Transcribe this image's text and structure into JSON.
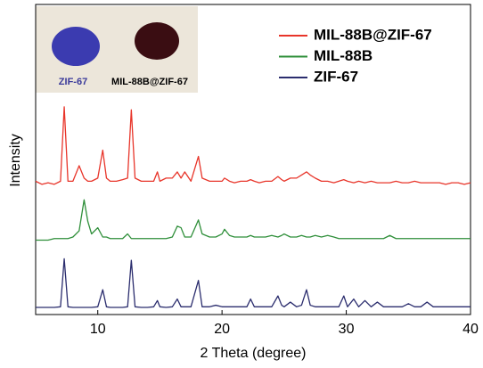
{
  "chart_data": {
    "type": "line",
    "xlabel": "2 Theta (degree)",
    "ylabel": "Intensity",
    "xlim": [
      5,
      40
    ],
    "xticks": [
      10,
      20,
      30,
      40
    ],
    "ylim": [
      0,
      100
    ],
    "legend": "upper right",
    "inset_labels": [
      "ZIF-67",
      "MIL-88B@ZIF-67"
    ],
    "x": [
      5,
      5.5,
      6,
      6.5,
      7,
      7.3,
      7.6,
      8,
      8.5,
      8.9,
      9.2,
      9.5,
      10,
      10.4,
      10.7,
      11,
      11.5,
      12,
      12.4,
      12.7,
      13,
      13.5,
      14,
      14.5,
      14.8,
      15,
      15.5,
      16,
      16.4,
      16.7,
      17,
      17.5,
      18.1,
      18.4,
      19,
      19.5,
      20,
      20.2,
      20.6,
      21,
      21.5,
      22,
      22.3,
      22.6,
      23,
      23.5,
      24,
      24.5,
      24.8,
      25,
      25.5,
      26,
      26.4,
      26.8,
      27.1,
      27.5,
      28,
      28.5,
      29,
      29.4,
      29.8,
      30.1,
      30.6,
      31,
      31.5,
      32,
      32.5,
      33,
      33.5,
      34,
      34.5,
      35,
      35.5,
      36,
      36.5,
      37,
      37.5,
      38,
      38.5,
      39,
      39.5,
      40
    ],
    "series": [
      {
        "name": "MIL-88B@ZIF-67",
        "color": "#e8352a",
        "values": [
          43,
          42,
          42.5,
          42,
          43,
          67,
          43,
          43,
          48,
          44,
          43,
          43,
          44,
          53,
          44,
          43,
          43,
          43.5,
          44,
          66,
          44,
          43,
          43,
          43,
          46,
          43,
          44,
          44,
          46,
          44,
          46,
          43,
          51,
          44,
          43,
          43,
          43,
          44,
          43,
          42.5,
          43,
          43,
          43.5,
          43,
          42.5,
          43,
          43,
          44.5,
          43.5,
          43,
          44,
          44,
          45,
          46,
          45,
          44,
          43,
          43,
          42.5,
          43,
          43.5,
          43,
          42.5,
          43,
          42.5,
          43,
          42.5,
          42.5,
          42.5,
          43,
          42.5,
          42.5,
          43,
          42.5,
          42.5,
          42.5,
          42.5,
          42,
          42.5,
          42.5,
          42,
          42.5
        ]
      },
      {
        "name": "MIL-88B",
        "color": "#2f8f3a",
        "values": [
          24,
          24,
          24,
          24.5,
          24.5,
          24.5,
          24.5,
          25,
          27,
          37,
          30,
          26,
          28,
          25,
          25,
          24.5,
          24.5,
          24.5,
          26,
          24.5,
          24.5,
          24.5,
          24.5,
          24.5,
          24.5,
          24.5,
          24.5,
          25,
          28.5,
          28,
          25,
          25,
          30.5,
          26,
          25,
          25,
          26,
          27.5,
          25.5,
          25,
          25,
          25,
          25.5,
          25,
          25,
          25,
          25.5,
          25,
          25.5,
          26,
          25,
          25,
          25.5,
          25,
          25,
          25.5,
          25,
          25.5,
          25,
          24.5,
          24.5,
          24.5,
          24.5,
          24.5,
          24.5,
          24.5,
          24.5,
          24.5,
          25.5,
          24.5,
          24.5,
          24.5,
          24.5,
          24.5,
          24.5,
          24.5,
          24.5,
          24.5,
          24.5,
          24.5,
          24.5,
          24.5
        ]
      },
      {
        "name": "ZIF-67",
        "color": "#2b2d6e",
        "values": [
          2.3,
          2.3,
          2.3,
          2.3,
          2.5,
          18,
          2.5,
          2.3,
          2.3,
          2.3,
          2.3,
          2.3,
          2.5,
          8,
          2.5,
          2.3,
          2.3,
          2.3,
          2.5,
          17.5,
          2.5,
          2.3,
          2.3,
          2.5,
          4.5,
          2.5,
          2.3,
          2.5,
          5,
          2.5,
          2.5,
          2.5,
          11,
          2.5,
          2.5,
          3,
          2.5,
          2.5,
          2.5,
          2.5,
          2.5,
          2.5,
          5,
          2.5,
          2.5,
          2.5,
          2.5,
          6,
          3,
          2.5,
          4,
          2.5,
          3,
          8,
          3,
          2.5,
          2.5,
          2.5,
          2.5,
          2.5,
          6,
          2.5,
          5,
          2.5,
          4.5,
          2.5,
          4,
          2.5,
          2.5,
          2.5,
          2.5,
          3.5,
          2.5,
          2.5,
          4,
          2.5,
          2.5,
          2.5,
          2.5,
          2.5,
          2.5,
          2.5
        ]
      }
    ]
  }
}
